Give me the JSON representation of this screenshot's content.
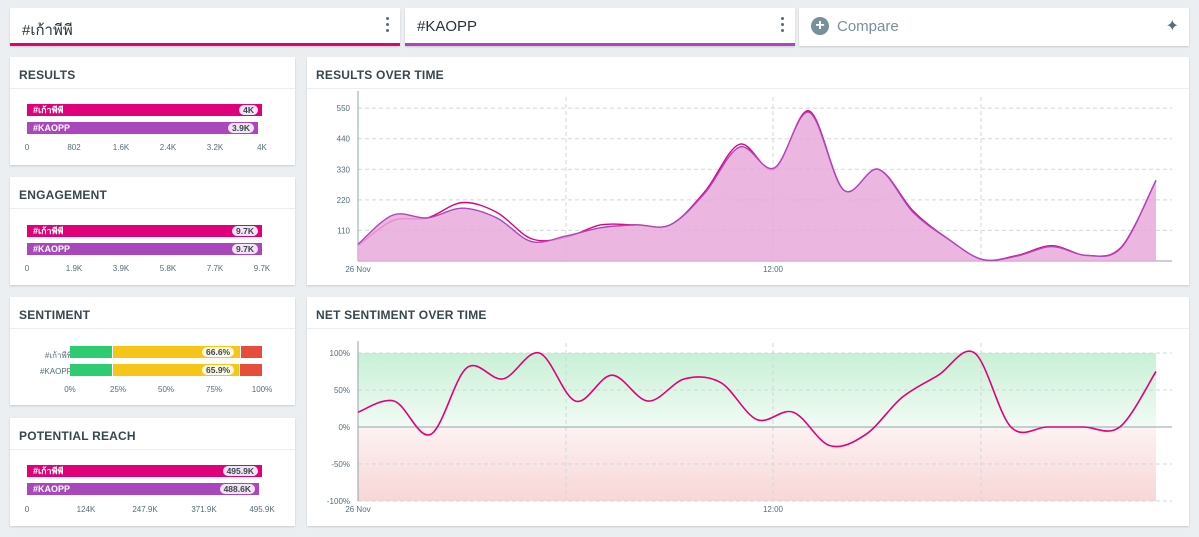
{
  "tabs": [
    {
      "label": "#เก้าพีพี",
      "color": "#e0007a"
    },
    {
      "label": "#KAOPP",
      "color": "#ab47bc"
    }
  ],
  "compare": {
    "label": "Compare"
  },
  "colors": {
    "series1": "#e0007a",
    "series2": "#ab47bc",
    "positive": "#2ecc71",
    "neutral": "#f5c518",
    "negative": "#e74c3c"
  },
  "results": {
    "title": "RESULTS",
    "bars": [
      {
        "name": "#เก้าพีพี",
        "value_label": "4K",
        "value": 4000
      },
      {
        "name": "#KAOPP",
        "value_label": "3.9K",
        "value": 3900
      }
    ],
    "ticks": [
      "0",
      "802",
      "1.6K",
      "2.4K",
      "3.2K",
      "4K"
    ]
  },
  "engagement": {
    "title": "ENGAGEMENT",
    "bars": [
      {
        "name": "#เก้าพีพี",
        "value_label": "9.7K",
        "value": 9700
      },
      {
        "name": "#KAOPP",
        "value_label": "9.7K",
        "value": 9700
      }
    ],
    "ticks": [
      "0",
      "1.9K",
      "3.9K",
      "5.8K",
      "7.7K",
      "9.7K"
    ]
  },
  "sentiment": {
    "title": "SENTIMENT",
    "rows": [
      {
        "name": "#เก้าพีพี",
        "positive": 22,
        "neutral": 66.6,
        "negative": 11.4,
        "value_label": "66.6%"
      },
      {
        "name": "#KAOPP",
        "positive": 22,
        "neutral": 65.9,
        "negative": 12.1,
        "value_label": "65.9%"
      }
    ],
    "ticks": [
      "0%",
      "25%",
      "50%",
      "75%",
      "100%"
    ]
  },
  "reach": {
    "title": "POTENTIAL REACH",
    "bars": [
      {
        "name": "#เก้าพีพี",
        "value_label": "495.9K",
        "value": 495900
      },
      {
        "name": "#KAOPP",
        "value_label": "488.6K",
        "value": 488600
      }
    ],
    "ticks": [
      "0",
      "124K",
      "247.9K",
      "371.9K",
      "495.9K"
    ]
  },
  "results_over_time": {
    "title": "RESULTS OVER TIME",
    "chart_data": {
      "type": "area",
      "x_labels": [
        "26 Nov",
        "12:00"
      ],
      "y_ticks": [
        "110",
        "220",
        "330",
        "440",
        "550"
      ],
      "ylim": [
        0,
        590
      ],
      "series": [
        {
          "name": "#เก้าพีพี",
          "values": [
            55,
            145,
            155,
            210,
            175,
            80,
            85,
            130,
            130,
            130,
            250,
            420,
            330,
            540,
            255,
            330,
            180,
            80,
            5,
            20,
            55,
            20,
            50,
            290
          ]
        },
        {
          "name": "#KAOPP",
          "values": [
            60,
            165,
            155,
            190,
            155,
            70,
            90,
            120,
            130,
            130,
            245,
            410,
            335,
            535,
            255,
            330,
            175,
            80,
            5,
            18,
            52,
            20,
            48,
            290
          ]
        }
      ]
    }
  },
  "net_sentiment_over_time": {
    "title": "NET SENTIMENT OVER TIME",
    "chart_data": {
      "type": "line",
      "x_labels": [
        "26 Nov",
        "12:00"
      ],
      "y_ticks": [
        "100%",
        "50%",
        "0%",
        "-50%",
        "-100%"
      ],
      "ylim": [
        -100,
        100
      ],
      "series": [
        {
          "name": "#เก้าพีพี",
          "values": [
            20,
            35,
            -10,
            80,
            65,
            100,
            35,
            70,
            35,
            65,
            60,
            10,
            20,
            -25,
            -10,
            40,
            70,
            100,
            0,
            0,
            0,
            0,
            75
          ]
        }
      ]
    }
  }
}
